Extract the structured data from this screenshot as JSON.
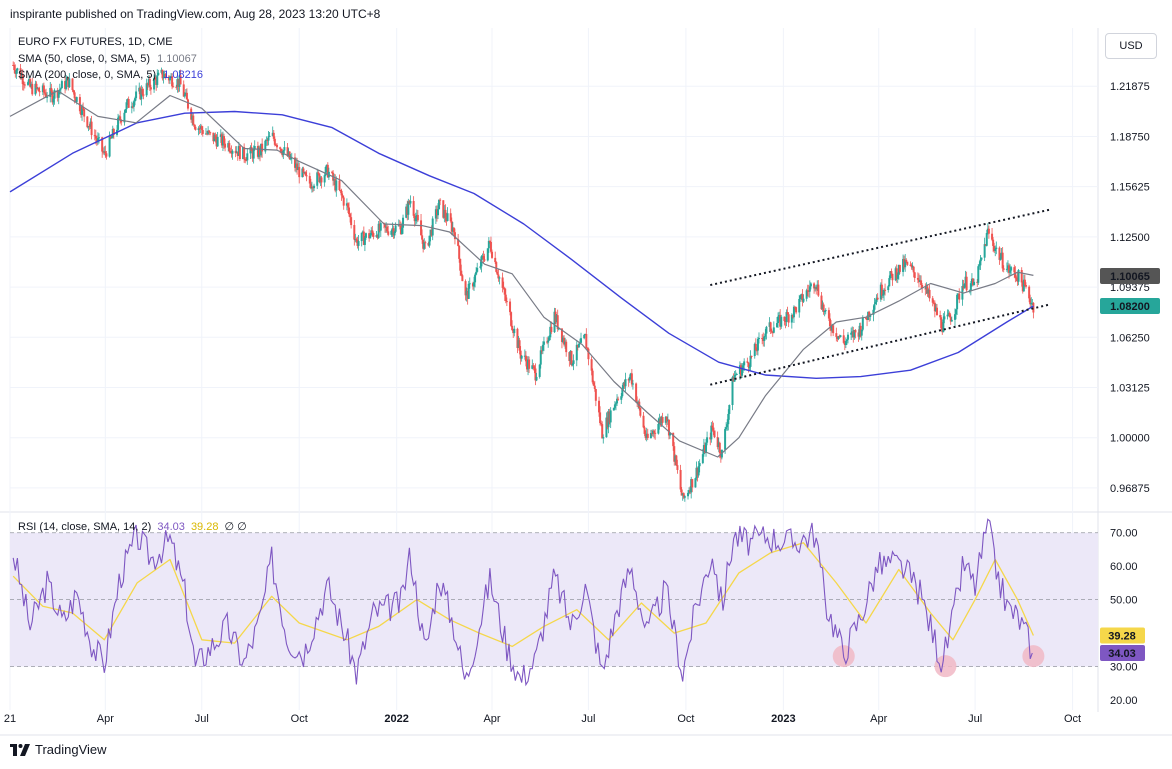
{
  "header": {
    "published": "inspirante published on TradingView.com, Aug 28, 2023 13:20 UTC+8"
  },
  "currency_button": "USD",
  "legend": {
    "symbol": "EURO FX FUTURES, 1D, CME",
    "sma50_label": "SMA (50, close, 0, SMA, 5)",
    "sma50_value": "1.10067",
    "sma200_label": "SMA (200, close, 0, SMA, 5)",
    "sma200_value": "1.08216",
    "rsi_label": "RSI (14, close, SMA, 14, 2)",
    "rsi_value": "34.03",
    "rsi_sma_value": "39.28",
    "rsi_extra": "∅ ∅"
  },
  "footer": {
    "brand": "TradingView",
    "logo_icon": "tradingview-logo-icon"
  },
  "colors": {
    "up": "#26a69a",
    "down": "#ef5350",
    "sma50": "#787b86",
    "sma200": "#3c3fd8",
    "rsi": "#7e57c2",
    "rsi_sma": "#f5d74a",
    "band": "#ece8f8",
    "marker": "#f1b8c5"
  },
  "chart_data": [
    {
      "type": "candlestick",
      "title": "EURO FX FUTURES, 1D, CME",
      "ylim": [
        0.955,
        1.255
      ],
      "y_ticks": [
        "1.21875",
        "1.18750",
        "1.15625",
        "1.12500",
        "1.09375",
        "1.06250",
        "1.03125",
        "1.00000",
        "0.96875"
      ],
      "y_tick_values": [
        1.21875,
        1.1875,
        1.15625,
        1.125,
        1.09375,
        1.0625,
        1.03125,
        1.0,
        0.96875
      ],
      "x_ticks": [
        "21",
        "Apr",
        "Jul",
        "Oct",
        "2022",
        "Apr",
        "Jul",
        "Oct",
        "2023",
        "Apr",
        "Jul",
        "Oct"
      ],
      "x_tick_dates": [
        "2021-01-01",
        "2021-04-01",
        "2021-07-01",
        "2021-10-01",
        "2022-01-01",
        "2022-04-01",
        "2022-07-01",
        "2022-10-01",
        "2023-01-01",
        "2023-04-01",
        "2023-07-01",
        "2023-10-01"
      ],
      "x_range": [
        "2021-01-01",
        "2023-10-25"
      ],
      "close_path": [
        [
          "2021-01-04",
          1.232
        ],
        [
          "2021-01-20",
          1.218
        ],
        [
          "2021-02-10",
          1.213
        ],
        [
          "2021-02-25",
          1.222
        ],
        [
          "2021-03-15",
          1.197
        ],
        [
          "2021-03-31",
          1.176
        ],
        [
          "2021-04-20",
          1.206
        ],
        [
          "2021-05-10",
          1.218
        ],
        [
          "2021-05-25",
          1.226
        ],
        [
          "2021-06-10",
          1.221
        ],
        [
          "2021-06-25",
          1.195
        ],
        [
          "2021-07-10",
          1.187
        ],
        [
          "2021-07-25",
          1.183
        ],
        [
          "2021-08-10",
          1.176
        ],
        [
          "2021-08-25",
          1.178
        ],
        [
          "2021-09-05",
          1.188
        ],
        [
          "2021-09-25",
          1.171
        ],
        [
          "2021-10-10",
          1.158
        ],
        [
          "2021-10-28",
          1.166
        ],
        [
          "2021-11-15",
          1.144
        ],
        [
          "2021-11-24",
          1.122
        ],
        [
          "2021-12-15",
          1.129
        ],
        [
          "2022-01-05",
          1.131
        ],
        [
          "2022-01-14",
          1.148
        ],
        [
          "2022-01-28",
          1.117
        ],
        [
          "2022-02-10",
          1.145
        ],
        [
          "2022-02-25",
          1.128
        ],
        [
          "2022-03-07",
          1.087
        ],
        [
          "2022-03-30",
          1.121
        ],
        [
          "2022-04-28",
          1.052
        ],
        [
          "2022-05-12",
          1.04
        ],
        [
          "2022-05-30",
          1.076
        ],
        [
          "2022-06-15",
          1.048
        ],
        [
          "2022-06-28",
          1.062
        ],
        [
          "2022-07-14",
          1.003
        ],
        [
          "2022-07-28",
          1.025
        ],
        [
          "2022-08-10",
          1.039
        ],
        [
          "2022-08-25",
          0.998
        ],
        [
          "2022-09-12",
          1.016
        ],
        [
          "2022-09-28",
          0.961
        ],
        [
          "2022-10-10",
          0.977
        ],
        [
          "2022-10-26",
          1.006
        ],
        [
          "2022-11-04",
          0.99
        ],
        [
          "2022-11-15",
          1.038
        ],
        [
          "2022-12-01",
          1.049
        ],
        [
          "2022-12-15",
          1.066
        ],
        [
          "2023-01-10",
          1.078
        ],
        [
          "2023-01-31",
          1.098
        ],
        [
          "2023-02-10",
          1.075
        ],
        [
          "2023-02-27",
          1.059
        ],
        [
          "2023-03-15",
          1.068
        ],
        [
          "2023-03-31",
          1.089
        ],
        [
          "2023-04-14",
          1.101
        ],
        [
          "2023-04-26",
          1.108
        ],
        [
          "2023-05-10",
          1.099
        ],
        [
          "2023-05-31",
          1.07
        ],
        [
          "2023-06-10",
          1.077
        ],
        [
          "2023-06-20",
          1.097
        ],
        [
          "2023-07-01",
          1.094
        ],
        [
          "2023-07-13",
          1.128
        ],
        [
          "2023-07-20",
          1.118
        ],
        [
          "2023-07-31",
          1.105
        ],
        [
          "2023-08-10",
          1.101
        ],
        [
          "2023-08-18",
          1.092
        ],
        [
          "2023-08-25",
          1.082
        ]
      ],
      "sma50": [
        [
          "2021-01-01",
          1.2
        ],
        [
          "2021-02-15",
          1.216
        ],
        [
          "2021-03-25",
          1.2
        ],
        [
          "2021-04-30",
          1.196
        ],
        [
          "2021-06-01",
          1.213
        ],
        [
          "2021-07-01",
          1.205
        ],
        [
          "2021-08-10",
          1.18
        ],
        [
          "2021-09-10",
          1.179
        ],
        [
          "2021-10-01",
          1.172
        ],
        [
          "2021-11-10",
          1.16
        ],
        [
          "2021-12-20",
          1.133
        ],
        [
          "2022-01-25",
          1.132
        ],
        [
          "2022-02-20",
          1.128
        ],
        [
          "2022-03-25",
          1.108
        ],
        [
          "2022-04-20",
          1.102
        ],
        [
          "2022-05-20",
          1.075
        ],
        [
          "2022-06-25",
          1.058
        ],
        [
          "2022-07-25",
          1.035
        ],
        [
          "2022-08-25",
          1.016
        ],
        [
          "2022-09-25",
          0.998
        ],
        [
          "2022-10-31",
          0.988
        ],
        [
          "2022-11-20",
          1.0
        ],
        [
          "2022-12-15",
          1.026
        ],
        [
          "2023-01-20",
          1.055
        ],
        [
          "2023-02-20",
          1.072
        ],
        [
          "2023-03-20",
          1.075
        ],
        [
          "2023-04-20",
          1.085
        ],
        [
          "2023-05-20",
          1.096
        ],
        [
          "2023-06-20",
          1.09
        ],
        [
          "2023-07-20",
          1.096
        ],
        [
          "2023-08-10",
          1.103
        ],
        [
          "2023-08-25",
          1.101
        ]
      ],
      "sma200": [
        [
          "2021-01-01",
          1.153
        ],
        [
          "2021-03-01",
          1.177
        ],
        [
          "2021-05-01",
          1.196
        ],
        [
          "2021-06-15",
          1.202
        ],
        [
          "2021-08-01",
          1.203
        ],
        [
          "2021-09-15",
          1.201
        ],
        [
          "2021-11-01",
          1.193
        ],
        [
          "2021-12-15",
          1.177
        ],
        [
          "2022-02-01",
          1.163
        ],
        [
          "2022-03-15",
          1.152
        ],
        [
          "2022-05-01",
          1.133
        ],
        [
          "2022-06-15",
          1.111
        ],
        [
          "2022-08-01",
          1.087
        ],
        [
          "2022-09-15",
          1.065
        ],
        [
          "2022-11-01",
          1.047
        ],
        [
          "2022-12-15",
          1.039
        ],
        [
          "2023-02-01",
          1.037
        ],
        [
          "2023-03-15",
          1.038
        ],
        [
          "2023-05-01",
          1.042
        ],
        [
          "2023-06-15",
          1.053
        ],
        [
          "2023-07-31",
          1.072
        ],
        [
          "2023-08-25",
          1.082
        ]
      ],
      "trendlines": [
        {
          "from": [
            "2022-10-24",
            1.095
          ],
          "to": [
            "2023-09-10",
            1.142
          ]
        },
        {
          "from": [
            "2022-10-24",
            1.033
          ],
          "to": [
            "2023-09-10",
            1.083
          ]
        }
      ],
      "price_labels": [
        {
          "text": "1.10065",
          "value": 1.10065,
          "color": "#555555"
        },
        {
          "text": "1.08200",
          "value": 1.082,
          "color": "#26a69a"
        }
      ]
    },
    {
      "type": "line",
      "title": "RSI (14, close, SMA, 14, 2)",
      "ylim": [
        17,
        75
      ],
      "y_ticks": [
        "70.00",
        "60.00",
        "50.00",
        "40.00",
        "30.00",
        "20.00"
      ],
      "y_tick_values": [
        70,
        60,
        50,
        40,
        30,
        20
      ],
      "band": [
        30,
        70
      ],
      "rsi": [
        [
          "2021-01-04",
          64
        ],
        [
          "2021-01-20",
          42
        ],
        [
          "2021-02-05",
          55
        ],
        [
          "2021-02-20",
          43
        ],
        [
          "2021-03-05",
          52
        ],
        [
          "2021-03-20",
          36
        ],
        [
          "2021-03-31",
          31
        ],
        [
          "2021-04-15",
          57
        ],
        [
          "2021-05-01",
          69
        ],
        [
          "2021-05-15",
          62
        ],
        [
          "2021-06-01",
          68
        ],
        [
          "2021-06-15",
          52
        ],
        [
          "2021-06-25",
          30
        ],
        [
          "2021-07-10",
          36
        ],
        [
          "2021-07-25",
          42
        ],
        [
          "2021-08-10",
          31
        ],
        [
          "2021-08-25",
          44
        ],
        [
          "2021-09-05",
          62
        ],
        [
          "2021-09-20",
          38
        ],
        [
          "2021-10-05",
          34
        ],
        [
          "2021-10-28",
          54
        ],
        [
          "2021-11-15",
          38
        ],
        [
          "2021-11-24",
          28
        ],
        [
          "2021-12-10",
          46
        ],
        [
          "2022-01-05",
          49
        ],
        [
          "2022-01-14",
          64
        ],
        [
          "2022-01-28",
          34
        ],
        [
          "2022-02-10",
          57
        ],
        [
          "2022-02-25",
          41
        ],
        [
          "2022-03-07",
          25
        ],
        [
          "2022-03-30",
          56
        ],
        [
          "2022-04-15",
          36
        ],
        [
          "2022-04-28",
          26
        ],
        [
          "2022-05-12",
          32
        ],
        [
          "2022-05-30",
          57
        ],
        [
          "2022-06-15",
          42
        ],
        [
          "2022-06-28",
          54
        ],
        [
          "2022-07-14",
          28
        ],
        [
          "2022-07-28",
          47
        ],
        [
          "2022-08-10",
          60
        ],
        [
          "2022-08-25",
          40
        ],
        [
          "2022-09-12",
          53
        ],
        [
          "2022-09-28",
          28
        ],
        [
          "2022-10-10",
          47
        ],
        [
          "2022-10-26",
          64
        ],
        [
          "2022-11-04",
          48
        ],
        [
          "2022-11-15",
          69
        ],
        [
          "2022-12-01",
          67
        ],
        [
          "2022-12-15",
          69
        ],
        [
          "2023-01-10",
          67
        ],
        [
          "2023-01-31",
          70
        ],
        [
          "2023-02-10",
          49
        ],
        [
          "2023-02-27",
          34
        ],
        [
          "2023-03-15",
          45
        ],
        [
          "2023-03-31",
          60
        ],
        [
          "2023-04-14",
          61
        ],
        [
          "2023-04-26",
          59
        ],
        [
          "2023-05-10",
          52
        ],
        [
          "2023-05-31",
          31
        ],
        [
          "2023-06-10",
          44
        ],
        [
          "2023-06-20",
          61
        ],
        [
          "2023-07-01",
          54
        ],
        [
          "2023-07-13",
          73
        ],
        [
          "2023-07-20",
          60
        ],
        [
          "2023-07-31",
          48
        ],
        [
          "2023-08-10",
          45
        ],
        [
          "2023-08-18",
          40
        ],
        [
          "2023-08-25",
          34.03
        ]
      ],
      "rsi_sma": [
        [
          "2021-01-04",
          57
        ],
        [
          "2021-02-01",
          48
        ],
        [
          "2021-03-01",
          46
        ],
        [
          "2021-03-31",
          38
        ],
        [
          "2021-05-01",
          55
        ],
        [
          "2021-06-01",
          62
        ],
        [
          "2021-07-01",
          38
        ],
        [
          "2021-08-01",
          37
        ],
        [
          "2021-09-05",
          51
        ],
        [
          "2021-10-01",
          43
        ],
        [
          "2021-11-15",
          38
        ],
        [
          "2021-12-15",
          42
        ],
        [
          "2022-01-20",
          50
        ],
        [
          "2022-02-20",
          44
        ],
        [
          "2022-03-20",
          40
        ],
        [
          "2022-04-20",
          36
        ],
        [
          "2022-05-20",
          42
        ],
        [
          "2022-06-20",
          47
        ],
        [
          "2022-07-20",
          38
        ],
        [
          "2022-08-20",
          49
        ],
        [
          "2022-09-20",
          40
        ],
        [
          "2022-10-20",
          43
        ],
        [
          "2022-11-20",
          58
        ],
        [
          "2022-12-20",
          64
        ],
        [
          "2023-01-20",
          67
        ],
        [
          "2023-02-20",
          55
        ],
        [
          "2023-03-20",
          43
        ],
        [
          "2023-04-20",
          59
        ],
        [
          "2023-05-20",
          46
        ],
        [
          "2023-06-10",
          38
        ],
        [
          "2023-07-01",
          50
        ],
        [
          "2023-07-20",
          62
        ],
        [
          "2023-08-10",
          50
        ],
        [
          "2023-08-25",
          39.28
        ]
      ],
      "markers": [
        [
          "2023-02-27",
          34
        ],
        [
          "2023-06-03",
          31
        ],
        [
          "2023-08-25",
          34
        ]
      ],
      "value_labels": [
        {
          "text": "39.28",
          "value": 39.28,
          "color": "#f5d74a"
        },
        {
          "text": "34.03",
          "value": 34.03,
          "color": "#7e57c2"
        }
      ]
    }
  ]
}
